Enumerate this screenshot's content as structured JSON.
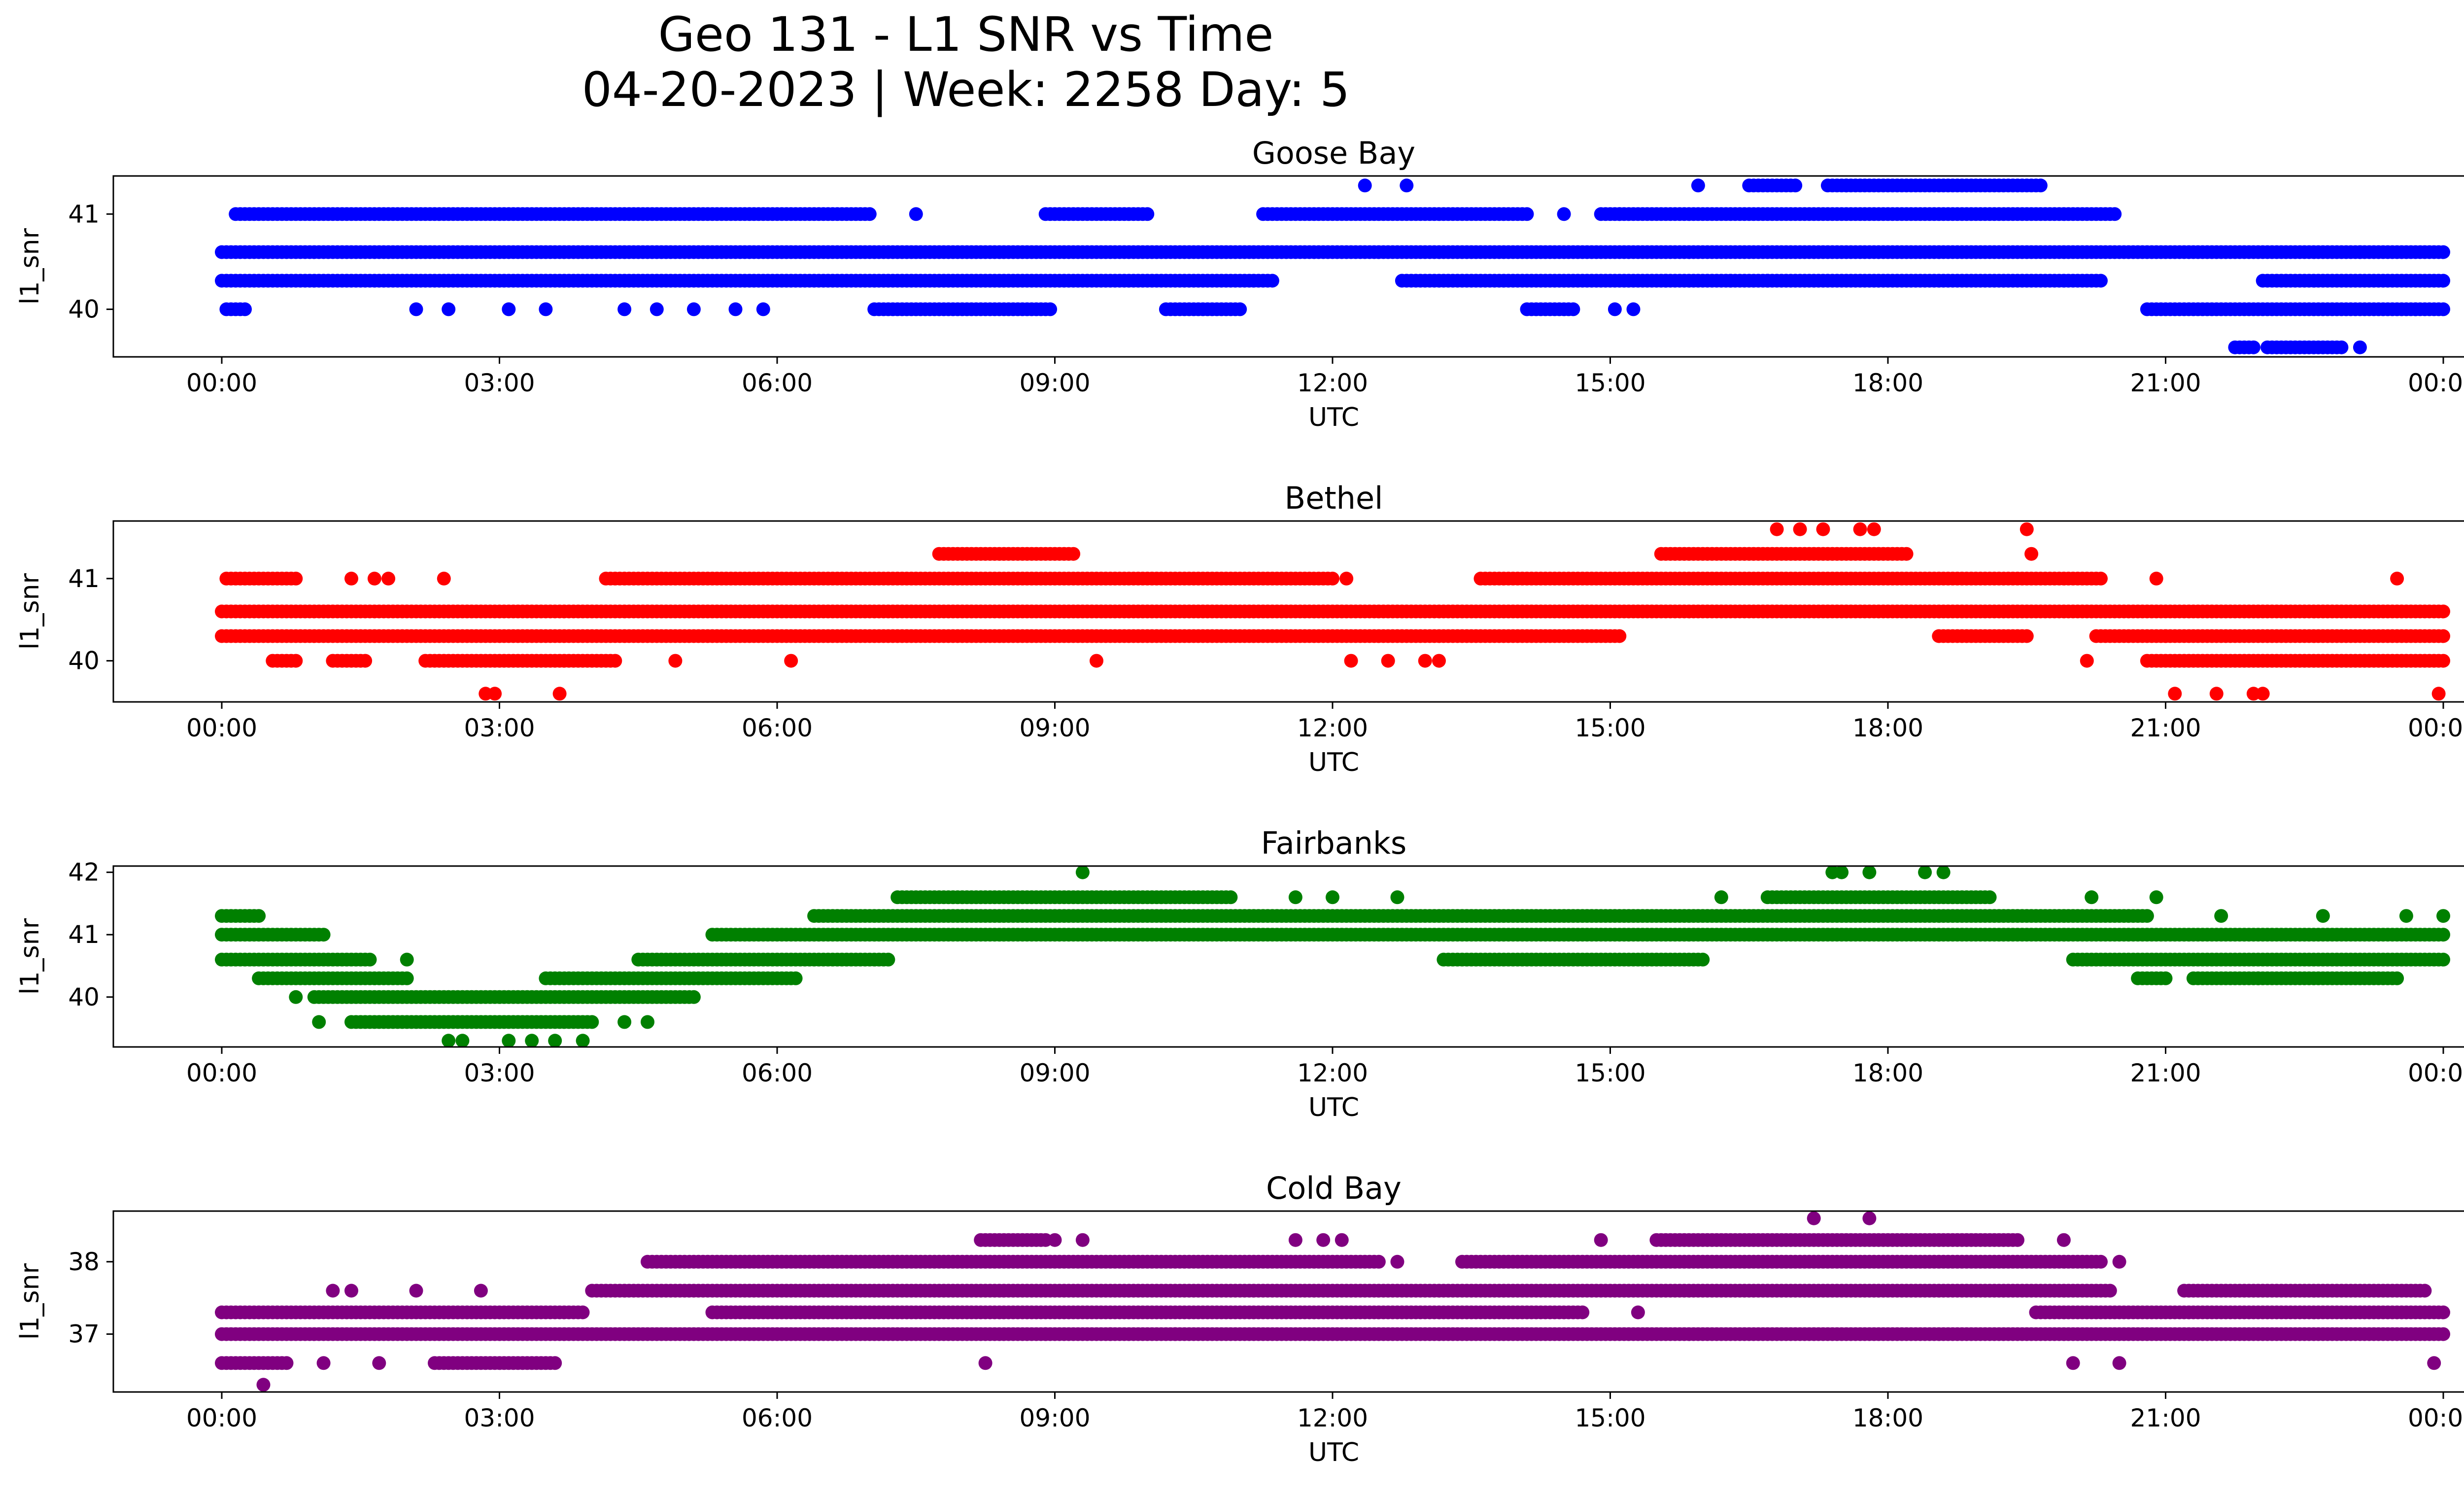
{
  "figure": {
    "title_line1": "Geo 131 - L1 SNR vs Time",
    "title_line2": "04-20-2023 | Week: 2258 Day: 5"
  },
  "chart_data": [
    {
      "type": "scatter",
      "title": "Goose Bay",
      "xlabel": "UTC",
      "ylabel": "l1_snr",
      "color": "#0000ff",
      "xlim": [
        "00:00",
        "24:00"
      ],
      "ylim": [
        39.5,
        41.4
      ],
      "yticks": [
        40,
        41
      ],
      "xtick_labels": [
        "00:00",
        "03:00",
        "06:00",
        "09:00",
        "12:00",
        "15:00",
        "18:00",
        "21:00",
        "00:00"
      ],
      "series": [
        {
          "segments": [
            [
              40.6,
              0.0,
              24.0
            ],
            [
              40.3,
              0.0,
              11.35
            ],
            [
              40.3,
              12.8,
              20.3
            ],
            [
              40.3,
              22.05,
              24.0
            ],
            [
              41.0,
              0.15,
              7.0
            ],
            [
              41.0,
              8.9,
              10.0
            ],
            [
              41.0,
              11.25,
              14.1
            ],
            [
              41.0,
              14.9,
              20.45
            ],
            [
              40.0,
              0.05,
              0.25
            ],
            [
              40.0,
              7.05,
              8.95
            ],
            [
              40.0,
              10.2,
              11.0
            ],
            [
              40.0,
              14.1,
              14.6
            ],
            [
              40.0,
              20.8,
              24.0
            ],
            [
              41.3,
              16.5,
              17.0
            ],
            [
              41.3,
              17.35,
              19.65
            ],
            [
              39.6,
              21.75,
              21.95
            ],
            [
              39.6,
              22.1,
              22.9
            ]
          ],
          "points": [
            [
              40.0,
              2.1
            ],
            [
              40.0,
              2.45
            ],
            [
              40.0,
              3.1
            ],
            [
              40.0,
              3.5
            ],
            [
              40.0,
              4.35
            ],
            [
              40.0,
              4.7
            ],
            [
              40.0,
              5.1
            ],
            [
              40.0,
              5.55
            ],
            [
              40.0,
              5.85
            ],
            [
              40.0,
              15.05
            ],
            [
              40.0,
              15.25
            ],
            [
              40.0,
              23.7
            ],
            [
              41.0,
              7.5
            ],
            [
              41.0,
              14.5
            ],
            [
              41.0,
              15.1
            ],
            [
              41.3,
              12.35
            ],
            [
              41.3,
              12.8
            ],
            [
              41.3,
              15.95
            ],
            [
              41.3,
              17.55
            ],
            [
              40.3,
              12.75
            ],
            [
              40.3,
              15.6
            ],
            [
              40.3,
              16.3
            ],
            [
              40.3,
              16.7
            ],
            [
              40.6,
              23.1
            ],
            [
              39.6,
              23.1
            ]
          ]
        }
      ]
    },
    {
      "type": "scatter",
      "title": "Bethel",
      "xlabel": "UTC",
      "ylabel": "l1_snr",
      "color": "#ff0000",
      "xlim": [
        "00:00",
        "24:00"
      ],
      "ylim": [
        39.5,
        41.7
      ],
      "yticks": [
        40,
        41
      ],
      "xtick_labels": [
        "00:00",
        "03:00",
        "06:00",
        "09:00",
        "12:00",
        "15:00",
        "18:00",
        "21:00",
        "00:00"
      ],
      "series": [
        {
          "segments": [
            [
              40.6,
              0.0,
              24.0
            ],
            [
              40.3,
              0.0,
              15.1
            ],
            [
              40.3,
              18.55,
              19.5
            ],
            [
              40.3,
              20.25,
              24.0
            ],
            [
              41.0,
              4.15,
              12.0
            ],
            [
              41.0,
              13.6,
              20.3
            ],
            [
              40.0,
              0.55,
              0.8
            ],
            [
              40.0,
              1.2,
              1.55
            ],
            [
              40.0,
              2.2,
              4.25
            ],
            [
              40.0,
              20.8,
              24.0
            ],
            [
              41.3,
              7.75,
              9.2
            ],
            [
              41.3,
              15.55,
              18.2
            ],
            [
              41.0,
              0.05,
              0.8
            ]
          ],
          "points": [
            [
              41.0,
              1.4
            ],
            [
              41.0,
              1.65
            ],
            [
              41.0,
              1.8
            ],
            [
              41.0,
              2.4
            ],
            [
              41.0,
              12.15
            ],
            [
              41.0,
              20.9
            ],
            [
              41.0,
              23.5
            ],
            [
              40.0,
              4.9
            ],
            [
              40.0,
              6.15
            ],
            [
              40.0,
              9.45
            ],
            [
              40.0,
              12.2
            ],
            [
              40.0,
              12.6
            ],
            [
              40.0,
              13.0
            ],
            [
              40.0,
              13.15
            ],
            [
              40.0,
              20.15
            ],
            [
              39.6,
              2.85
            ],
            [
              39.6,
              2.95
            ],
            [
              39.6,
              3.65
            ],
            [
              39.6,
              21.1
            ],
            [
              39.6,
              21.55
            ],
            [
              39.6,
              21.95
            ],
            [
              39.6,
              22.05
            ],
            [
              39.6,
              23.95
            ],
            [
              41.6,
              16.8
            ],
            [
              41.6,
              17.05
            ],
            [
              41.6,
              17.3
            ],
            [
              41.6,
              17.7
            ],
            [
              41.6,
              17.85
            ],
            [
              41.6,
              19.5
            ],
            [
              41.3,
              19.55
            ],
            [
              40.3,
              21.0
            ],
            [
              40.6,
              18.2
            ]
          ]
        }
      ]
    },
    {
      "type": "scatter",
      "title": "Fairbanks",
      "xlabel": "UTC",
      "ylabel": "l1_snr",
      "color": "#008000",
      "xlim": [
        "00:00",
        "24:00"
      ],
      "ylim": [
        39.2,
        42.1
      ],
      "yticks": [
        40,
        41,
        42
      ],
      "xtick_labels": [
        "00:00",
        "03:00",
        "06:00",
        "09:00",
        "12:00",
        "15:00",
        "18:00",
        "21:00",
        "00:00"
      ],
      "series": [
        {
          "segments": [
            [
              41.3,
              0.0,
              0.4
            ],
            [
              41.3,
              6.4,
              20.8
            ],
            [
              41.0,
              0.0,
              1.1
            ],
            [
              41.0,
              5.3,
              24.0
            ],
            [
              40.6,
              0.0,
              1.6
            ],
            [
              40.6,
              4.5,
              7.2
            ],
            [
              40.6,
              13.2,
              16.0
            ],
            [
              40.6,
              20.0,
              24.0
            ],
            [
              40.3,
              0.4,
              2.0
            ],
            [
              40.3,
              3.5,
              6.2
            ],
            [
              40.3,
              20.7,
              21.0
            ],
            [
              40.3,
              21.3,
              23.5
            ],
            [
              40.0,
              1.0,
              5.1
            ],
            [
              39.6,
              1.4,
              4.0
            ],
            [
              41.6,
              7.3,
              10.9
            ],
            [
              41.6,
              16.7,
              19.1
            ]
          ],
          "points": [
            [
              41.6,
              11.6
            ],
            [
              41.6,
              12.0
            ],
            [
              41.6,
              12.7
            ],
            [
              41.6,
              16.2
            ],
            [
              41.6,
              20.2
            ],
            [
              41.6,
              20.9
            ],
            [
              42.0,
              9.3
            ],
            [
              42.0,
              17.4
            ],
            [
              42.0,
              17.5
            ],
            [
              42.0,
              17.8
            ],
            [
              42.0,
              18.4
            ],
            [
              42.0,
              18.6
            ],
            [
              41.3,
              21.6
            ],
            [
              41.3,
              22.7
            ],
            [
              41.3,
              23.6
            ],
            [
              41.3,
              24.0
            ],
            [
              39.3,
              2.45
            ],
            [
              39.3,
              2.6
            ],
            [
              39.3,
              3.1
            ],
            [
              39.3,
              3.35
            ],
            [
              39.3,
              3.6
            ],
            [
              39.3,
              3.9
            ],
            [
              39.6,
              4.35
            ],
            [
              39.6,
              4.6
            ],
            [
              39.6,
              1.05
            ],
            [
              40.0,
              0.8
            ],
            [
              40.6,
              2.0
            ],
            [
              40.3,
              22.0
            ]
          ]
        }
      ]
    },
    {
      "type": "scatter",
      "title": "Cold Bay",
      "xlabel": "UTC",
      "ylabel": "l1_snr",
      "color": "#800080",
      "xlim": [
        "00:00",
        "24:00"
      ],
      "ylim": [
        36.2,
        38.7
      ],
      "yticks": [
        37,
        38
      ],
      "xtick_labels": [
        "00:00",
        "03:00",
        "06:00",
        "09:00",
        "12:00",
        "15:00",
        "18:00",
        "21:00",
        "00:00"
      ],
      "series": [
        {
          "segments": [
            [
              37.0,
              0.0,
              24.0
            ],
            [
              37.3,
              0.0,
              3.9
            ],
            [
              37.3,
              5.3,
              14.7
            ],
            [
              37.3,
              19.6,
              24.0
            ],
            [
              37.6,
              4.0,
              20.4
            ],
            [
              37.6,
              21.2,
              23.8
            ],
            [
              38.0,
              4.6,
              12.5
            ],
            [
              38.0,
              13.4,
              20.3
            ],
            [
              36.6,
              0.0,
              0.7
            ],
            [
              36.6,
              2.3,
              3.6
            ],
            [
              38.3,
              8.2,
              8.9
            ],
            [
              38.3,
              15.5,
              19.4
            ]
          ],
          "points": [
            [
              36.6,
              1.1
            ],
            [
              36.6,
              1.7
            ],
            [
              36.6,
              8.25
            ],
            [
              36.6,
              20.0
            ],
            [
              36.6,
              20.5
            ],
            [
              36.6,
              23.9
            ],
            [
              36.3,
              0.45
            ],
            [
              37.6,
              1.2
            ],
            [
              37.6,
              1.4
            ],
            [
              37.6,
              2.1
            ],
            [
              37.6,
              2.8
            ],
            [
              38.3,
              9.0
            ],
            [
              38.3,
              9.3
            ],
            [
              38.3,
              11.6
            ],
            [
              38.3,
              11.9
            ],
            [
              38.3,
              12.1
            ],
            [
              38.3,
              14.9
            ],
            [
              38.3,
              19.9
            ],
            [
              38.6,
              17.2
            ],
            [
              38.6,
              17.8
            ],
            [
              37.0,
              8.9
            ],
            [
              37.0,
              9.6
            ],
            [
              37.0,
              10.3
            ],
            [
              37.3,
              15.3
            ],
            [
              38.0,
              12.7
            ],
            [
              38.0,
              20.5
            ]
          ]
        }
      ]
    }
  ]
}
